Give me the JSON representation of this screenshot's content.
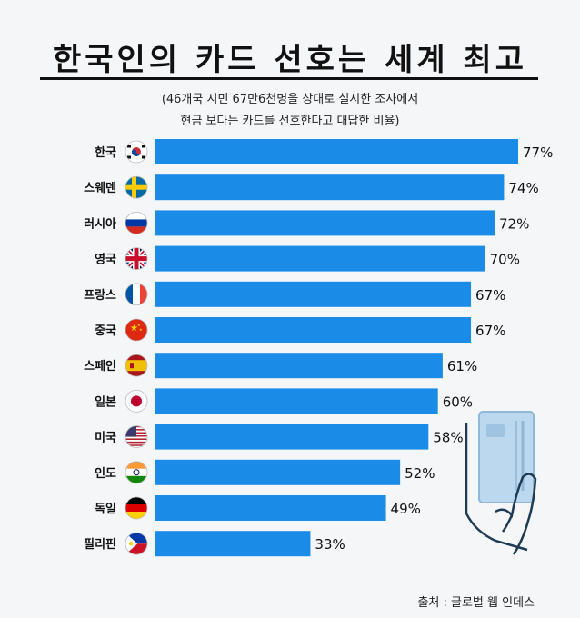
{
  "header": {
    "title": "한국인의 카드 선호는 세계 최고",
    "subtitle_line1": "(46개국 시민 67만6천명을 상대로 실시한 조사에서",
    "subtitle_line2": "현금 보다는 카드를 선호한다고 대답한 비율)"
  },
  "footer": {
    "source": "출처 :  글로벌 웹 인데스"
  },
  "colors": {
    "bar": "#1a8ce8",
    "background": "#f4f6f8",
    "text": "#111111"
  },
  "chart_data": {
    "type": "bar",
    "orientation": "horizontal",
    "categories": [
      "한국",
      "스웨덴",
      "러시아",
      "영국",
      "프랑스",
      "중국",
      "스페인",
      "일본",
      "미국",
      "인도",
      "독일",
      "필리핀"
    ],
    "values": [
      77,
      74,
      72,
      70,
      67,
      67,
      61,
      60,
      58,
      52,
      49,
      33
    ],
    "value_labels": [
      "77%",
      "74%",
      "72%",
      "70%",
      "67%",
      "67%",
      "61%",
      "60%",
      "58%",
      "52%",
      "49%",
      "33%"
    ],
    "flag_icons": [
      "korea-flag-icon",
      "sweden-flag-icon",
      "russia-flag-icon",
      "uk-flag-icon",
      "france-flag-icon",
      "china-flag-icon",
      "spain-flag-icon",
      "japan-flag-icon",
      "usa-flag-icon",
      "india-flag-icon",
      "germany-flag-icon",
      "philippines-flag-icon"
    ],
    "grid": false,
    "legend": "none"
  }
}
